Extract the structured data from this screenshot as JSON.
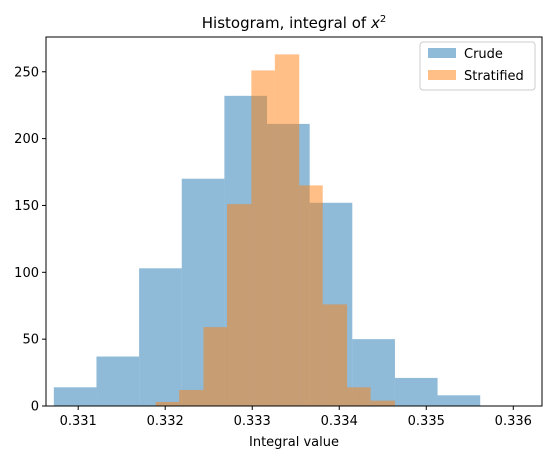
{
  "chart_data": {
    "type": "bar",
    "title": "Histogram, integral of x²",
    "title_main": "Histogram, integral of ",
    "title_var": "x",
    "title_sup": "2",
    "xlabel": "Integral value",
    "ylabel": "",
    "xlim": [
      0.33063,
      0.33633
    ],
    "ylim": [
      0,
      276
    ],
    "xticks": [
      0.331,
      0.332,
      0.333,
      0.334,
      0.335,
      0.336
    ],
    "xtick_labels": [
      "0.331",
      "0.332",
      "0.333",
      "0.334",
      "0.335",
      "0.336"
    ],
    "yticks": [
      0,
      50,
      100,
      150,
      200,
      250
    ],
    "ytick_labels": [
      "0",
      "50",
      "100",
      "150",
      "200",
      "250"
    ],
    "grid": false,
    "legend_position": "top-right",
    "series": [
      {
        "name": "Crude",
        "color": "#1f77b4",
        "alpha": 0.5,
        "bin_edges": [
          0.33072,
          0.33121,
          0.3317,
          0.33219,
          0.33268,
          0.33317,
          0.33366,
          0.33415,
          0.33464,
          0.33513,
          0.33562,
          0.33611
        ],
        "counts": [
          14,
          37,
          103,
          170,
          232,
          211,
          152,
          50,
          21,
          8,
          0
        ]
      },
      {
        "name": "Stratified",
        "color": "#ff7f0e",
        "alpha": 0.5,
        "bin_edges": [
          0.33189,
          0.33216,
          0.33244,
          0.33271,
          0.33299,
          0.33326,
          0.33354,
          0.33381,
          0.33409,
          0.33436,
          0.33464,
          0.33491
        ],
        "counts": [
          3,
          12,
          59,
          151,
          251,
          263,
          165,
          76,
          14,
          4,
          0
        ]
      }
    ]
  }
}
